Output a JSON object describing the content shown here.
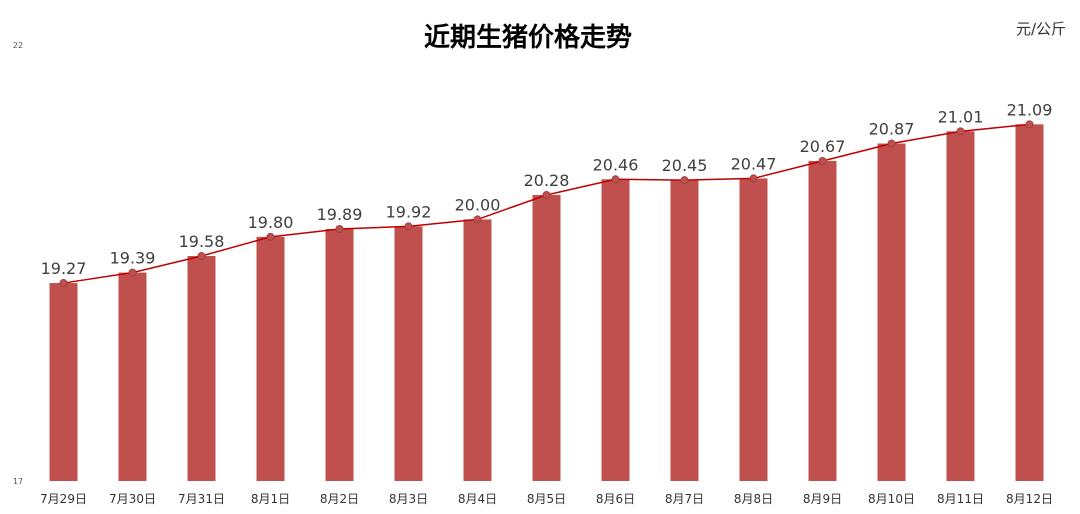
{
  "chart_data": {
    "type": "bar",
    "title": "近期生猪价格走势",
    "unit_label": "元/公斤",
    "categories": [
      "7月29日",
      "7月30日",
      "7月31日",
      "8月1日",
      "8月2日",
      "8月3日",
      "8月4日",
      "8月5日",
      "8月6日",
      "8月7日",
      "8月8日",
      "8月9日",
      "8月10日",
      "8月11日",
      "8月12日"
    ],
    "values": [
      19.27,
      19.39,
      19.58,
      19.8,
      19.89,
      19.92,
      20.0,
      20.28,
      20.46,
      20.45,
      20.47,
      20.67,
      20.87,
      21.01,
      21.09
    ],
    "value_labels": [
      "19.27",
      "19.39",
      "19.58",
      "19.80",
      "19.89",
      "19.92",
      "20.00",
      "20.28",
      "20.46",
      "20.45",
      "20.47",
      "20.67",
      "20.87",
      "21.01",
      "21.09"
    ],
    "ylim": [
      17,
      22
    ],
    "yticks": [
      "17",
      "22"
    ],
    "overlay": "line with markers",
    "grid": false,
    "legend": "none",
    "colors": {
      "bar": "#C0504D",
      "line": "#C00000",
      "marker": "#C0504D",
      "marker_stroke": "#A04040"
    }
  }
}
